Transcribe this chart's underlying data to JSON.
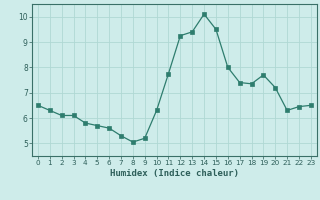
{
  "x": [
    0,
    1,
    2,
    3,
    4,
    5,
    6,
    7,
    8,
    9,
    10,
    11,
    12,
    13,
    14,
    15,
    16,
    17,
    18,
    19,
    20,
    21,
    22,
    23
  ],
  "y": [
    6.5,
    6.3,
    6.1,
    6.1,
    5.8,
    5.7,
    5.6,
    5.3,
    5.05,
    5.2,
    6.3,
    7.75,
    9.25,
    9.4,
    10.1,
    9.5,
    8.0,
    7.4,
    7.35,
    7.7,
    7.2,
    6.3,
    6.45,
    6.5
  ],
  "line_color": "#2e7d6e",
  "marker": "s",
  "marker_size": 2.2,
  "bg_color": "#ceecea",
  "grid_color": "#b0d8d4",
  "spine_color": "#3a7068",
  "xlabel": "Humidex (Indice chaleur)",
  "xlim": [
    -0.5,
    23.5
  ],
  "ylim": [
    4.5,
    10.5
  ],
  "yticks": [
    5,
    6,
    7,
    8,
    9,
    10
  ],
  "xticks": [
    0,
    1,
    2,
    3,
    4,
    5,
    6,
    7,
    8,
    9,
    10,
    11,
    12,
    13,
    14,
    15,
    16,
    17,
    18,
    19,
    20,
    21,
    22,
    23
  ],
  "font_color": "#2e5f5a"
}
